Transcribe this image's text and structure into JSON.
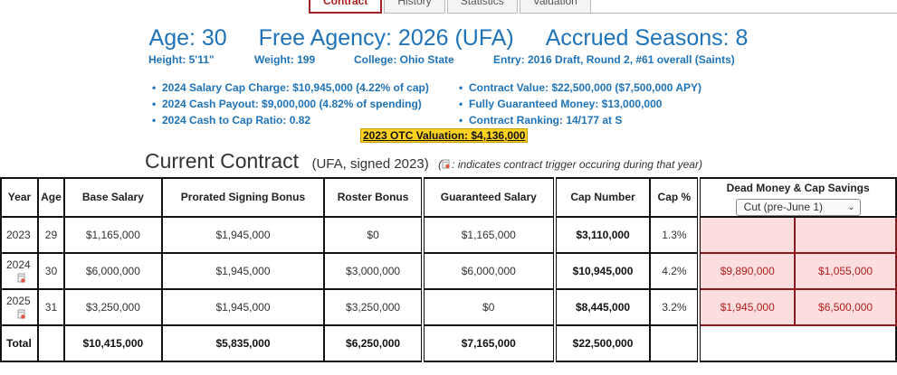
{
  "tabs": [
    "Contract",
    "History",
    "Statistics",
    "Valuation"
  ],
  "headline": {
    "age": "Age: 30",
    "free_agency": "Free Agency: 2026 (UFA)",
    "accrued": "Accrued Seasons: 8"
  },
  "bio": {
    "height": "Height: 5'11\"",
    "weight": "Weight: 199",
    "college": "College: Ohio State",
    "entry": "Entry: 2016 Draft, Round 2, #61 overall (Saints)"
  },
  "bullets_left": [
    "2024 Salary Cap Charge: $10,945,000 (4.22% of cap)",
    "2024 Cash Payout: $9,000,000 (4.82% of spending)",
    "2024 Cash to Cap Ratio: 0.82"
  ],
  "bullets_right": [
    "Contract Value: $22,500,000 ($7,500,000 APY)",
    "Fully Guaranteed Money: $13,000,000",
    "Contract Ranking: 14/177 at S"
  ],
  "otc_valuation": "2023 OTC Valuation: $4,136,000",
  "section": {
    "title": "Current Contract",
    "subtitle": "(UFA, signed 2023)",
    "note_open": "(",
    "note": ": indicates contract trigger occuring during that year)"
  },
  "table": {
    "headers": {
      "year": "Year",
      "age": "Age",
      "base": "Base Salary",
      "prorated": "Prorated Signing Bonus",
      "roster": "Roster Bonus",
      "guaranteed": "Guaranteed Salary",
      "cap_number": "Cap Number",
      "cap_pct": "Cap %",
      "dead_money": "Dead Money & Cap Savings",
      "dead_select": "Cut (pre-June 1)"
    },
    "rows": [
      {
        "year": "2023",
        "age": "29",
        "base": "$1,165,000",
        "prorated": "$1,945,000",
        "roster": "$0",
        "guaranteed": "$1,165,000",
        "cap": "$3,110,000",
        "pct": "1.3%",
        "dead": "",
        "savings": ""
      },
      {
        "year": "2024",
        "age": "30",
        "base": "$6,000,000",
        "prorated": "$1,945,000",
        "roster": "$3,000,000",
        "guaranteed": "$6,000,000",
        "cap": "$10,945,000",
        "pct": "4.2%",
        "dead": "$9,890,000",
        "savings": "$1,055,000"
      },
      {
        "year": "2025",
        "age": "31",
        "base": "$3,250,000",
        "prorated": "$1,945,000",
        "roster": "$3,250,000",
        "guaranteed": "$0",
        "cap": "$8,445,000",
        "pct": "3.2%",
        "dead": "$1,945,000",
        "savings": "$6,500,000"
      }
    ],
    "total": {
      "label": "Total",
      "base": "$10,415,000",
      "prorated": "$5,835,000",
      "roster": "$6,250,000",
      "guaranteed": "$7,165,000",
      "cap": "$22,500,000"
    }
  },
  "colors": {
    "accent_blue": "#1f73b8",
    "active_tab": "#a52020",
    "highlight": "#ffd21f",
    "dead_bg": "#fcdede",
    "dead_text": "#b01e1e"
  },
  "icons": {
    "trigger": "contract-trigger-icon",
    "dropdown": "chevron-down-icon"
  }
}
